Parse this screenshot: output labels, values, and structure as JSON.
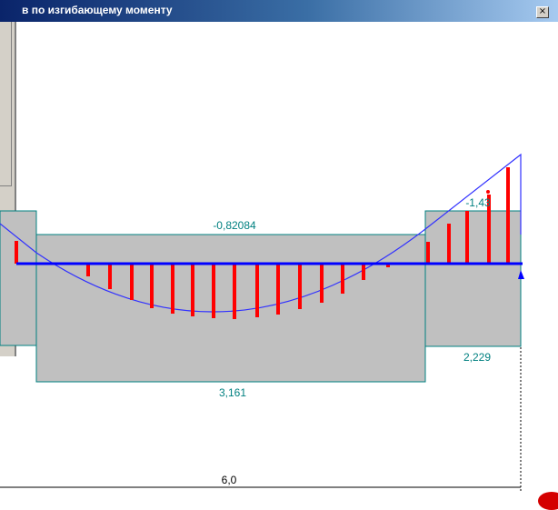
{
  "window": {
    "title": "в по изгибающему моменту",
    "close_label": "×"
  },
  "diagram": {
    "labels": {
      "top_middle": "-0,82084",
      "top_right": "-1,43",
      "bottom_middle": "3,161",
      "bottom_right": "2,229",
      "span": "6,0"
    },
    "colors": {
      "fill": "#c0c0c0",
      "outline": "#008080",
      "beam": "#0000ff",
      "curve": "#3030ff",
      "hatch": "#ff0000",
      "label": "#008080"
    }
  }
}
